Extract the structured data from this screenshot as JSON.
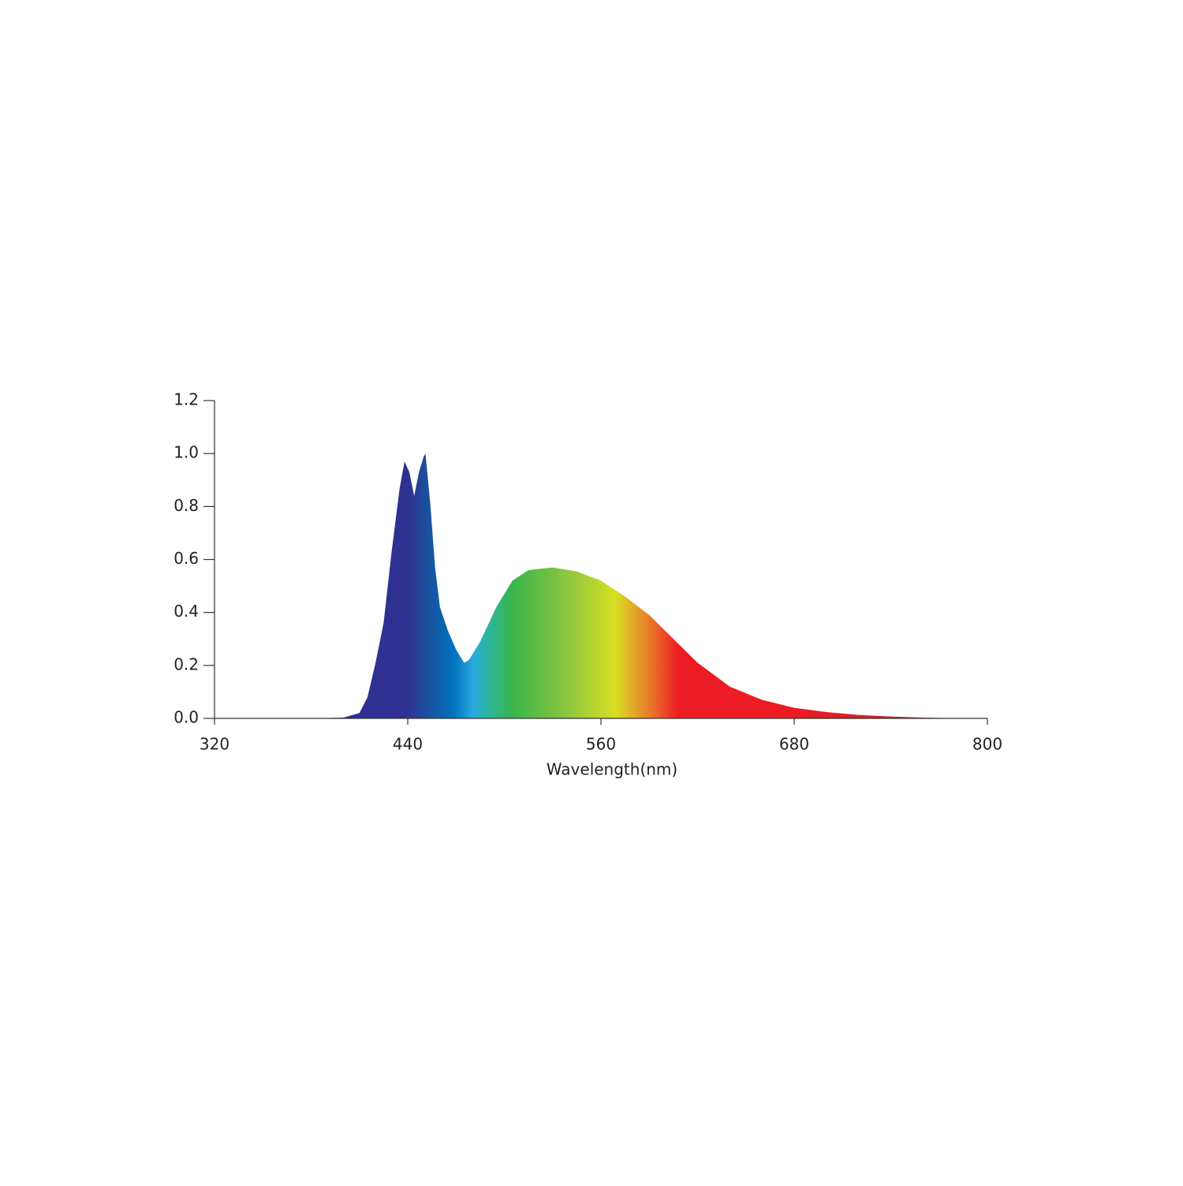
{
  "chart_data": {
    "type": "area",
    "x_label": "Wavelength(nm)",
    "x": [
      320,
      380,
      400,
      410,
      415,
      420,
      425,
      430,
      435,
      438,
      441,
      444,
      447,
      450,
      451,
      454,
      457,
      460,
      465,
      470,
      475,
      478,
      485,
      495,
      505,
      515,
      530,
      545,
      560,
      575,
      590,
      605,
      620,
      640,
      660,
      680,
      700,
      720,
      740,
      760,
      775,
      800
    ],
    "values": [
      0,
      0,
      0.003,
      0.02,
      0.08,
      0.21,
      0.36,
      0.63,
      0.87,
      0.97,
      0.93,
      0.84,
      0.93,
      0.99,
      1.0,
      0.81,
      0.57,
      0.42,
      0.33,
      0.26,
      0.21,
      0.22,
      0.29,
      0.42,
      0.52,
      0.56,
      0.57,
      0.555,
      0.52,
      0.46,
      0.39,
      0.3,
      0.21,
      0.12,
      0.07,
      0.04,
      0.024,
      0.013,
      0.007,
      0.003,
      0.001,
      0
    ],
    "xlim": [
      320,
      800
    ],
    "ylim": [
      0,
      1.2
    ],
    "xticks": [
      320,
      440,
      560,
      680,
      800
    ],
    "yticks": [
      {
        "value": 0,
        "label": "0.0"
      },
      0.2,
      0.4,
      0.6,
      0.8,
      {
        "value": 1,
        "label": "1.0"
      },
      1.2
    ]
  }
}
